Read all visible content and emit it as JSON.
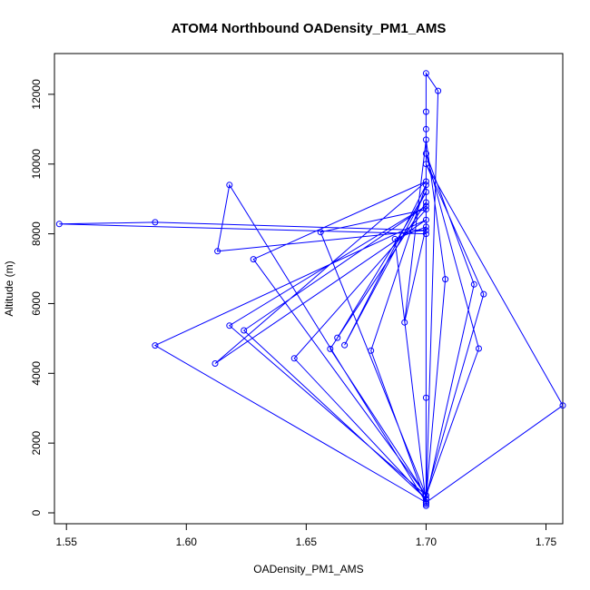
{
  "chart_data": {
    "type": "line",
    "title": "ATOM4 Northbound OADensity_PM1_AMS",
    "xlabel": "OADensity_PM1_AMS",
    "ylabel": "Altitude (m)",
    "xlim": [
      1.545,
      1.757
    ],
    "ylim": [
      0,
      12700
    ],
    "x_ticks": [
      1.55,
      1.6,
      1.65,
      1.7,
      1.75
    ],
    "x_tick_labels": [
      "1.55",
      "1.60",
      "1.65",
      "1.70",
      "1.75"
    ],
    "y_ticks": [
      0,
      2000,
      4000,
      6000,
      8000,
      10000,
      12000
    ],
    "y_tick_labels": [
      "0",
      "2000",
      "4000",
      "6000",
      "8000",
      "10000",
      "12000"
    ],
    "grid": false,
    "legend": "none",
    "line_color": "#0000ff",
    "marker": "open-circle",
    "series": [
      {
        "x": [
          1.7,
          1.547,
          1.587,
          1.7,
          1.613,
          1.618,
          1.7,
          1.587,
          1.7,
          1.612,
          1.7,
          1.628,
          1.7,
          1.618,
          1.7,
          1.624,
          1.7,
          1.645,
          1.7,
          1.656,
          1.7,
          1.66,
          1.7,
          1.663,
          1.7,
          1.666,
          1.7,
          1.677,
          1.7,
          1.687,
          1.7,
          1.691,
          1.7,
          1.708,
          1.7,
          1.72,
          1.7,
          1.722,
          1.7,
          1.724,
          1.7,
          1.757,
          1.7,
          1.7,
          1.705,
          1.7,
          1.7,
          1.7,
          1.7,
          1.7
        ],
        "y": [
          8000,
          8280,
          8330,
          8100,
          7500,
          9400,
          300,
          4800,
          8400,
          4280,
          9500,
          7270,
          500,
          5370,
          8800,
          5230,
          400,
          4430,
          8700,
          8050,
          500,
          4700,
          8900,
          5020,
          9200,
          4810,
          9400,
          4650,
          300,
          7850,
          8200,
          5460,
          10700,
          6700,
          400,
          6550,
          10300,
          4710,
          500,
          6270,
          10000,
          3080,
          300,
          12600,
          12100,
          200,
          11500,
          3300,
          11000,
          250
        ]
      }
    ]
  }
}
